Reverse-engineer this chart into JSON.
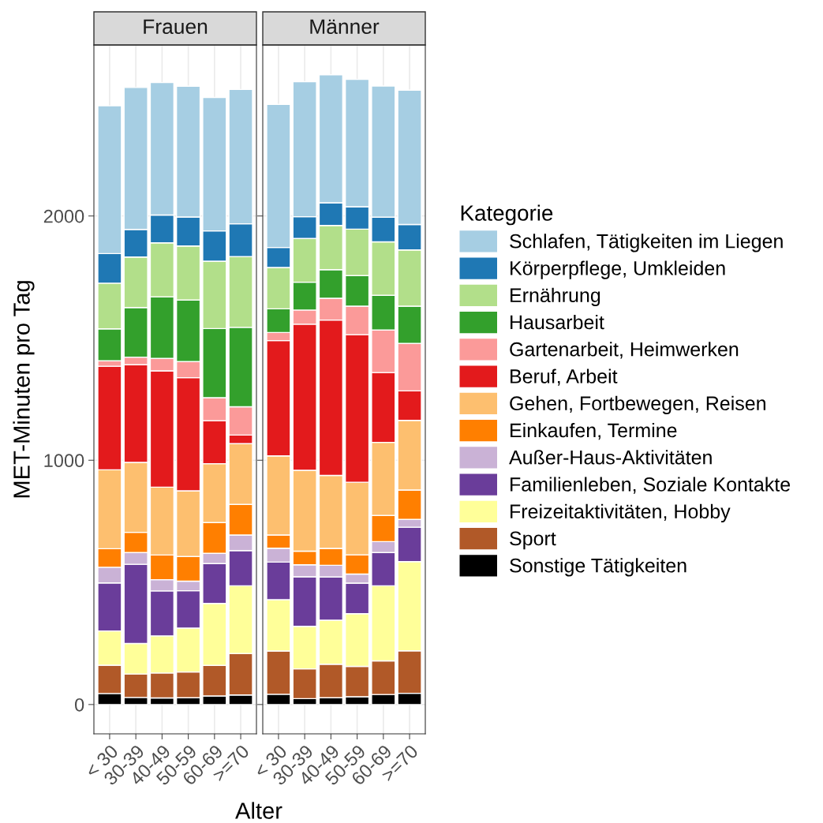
{
  "chart_data": [
    {
      "type": "bar",
      "stacked": true,
      "title": "Frauen",
      "ylabel": "MET-Minuten pro Tag",
      "xlabel": "Alter",
      "legend_title": "Kategorie",
      "legend": "right",
      "grid": true,
      "categories": [
        "< 30",
        "30-39",
        "40-49",
        "50-59",
        "60-69",
        ">=70"
      ],
      "ylim": [
        -120,
        2700
      ],
      "yticks": [
        0,
        1000,
        2000
      ],
      "series": [
        {
          "name": "Sonstige Tätigkeiten",
          "color": "#000000",
          "values": [
            45,
            29,
            27,
            28,
            35,
            39
          ]
        },
        {
          "name": "Sport",
          "color": "#b15928",
          "values": [
            116,
            96,
            102,
            105,
            125,
            170
          ]
        },
        {
          "name": "Freizeitaktivitäten, Hobby",
          "color": "#ffff99",
          "values": [
            140,
            125,
            152,
            180,
            254,
            277
          ]
        },
        {
          "name": "Familienleben, Soziale Kontakte",
          "color": "#6a3d9a",
          "values": [
            197,
            324,
            184,
            153,
            163,
            144
          ]
        },
        {
          "name": "Außer-Haus-Aktivitäten",
          "color": "#cab2d6",
          "values": [
            64,
            48,
            46,
            39,
            42,
            64
          ]
        },
        {
          "name": "Einkaufen, Termine",
          "color": "#ff7f00",
          "values": [
            76,
            83,
            101,
            101,
            126,
            125
          ]
        },
        {
          "name": "Gehen, Fortbewegen, Reisen",
          "color": "#fdbf6f",
          "values": [
            323,
            286,
            278,
            269,
            241,
            249
          ]
        },
        {
          "name": "Beruf, Arbeit",
          "color": "#e31a1c",
          "values": [
            424,
            400,
            476,
            463,
            176,
            35
          ]
        },
        {
          "name": "Gartenarbeit, Heimwerken",
          "color": "#fb9a99",
          "values": [
            22,
            31,
            51,
            66,
            94,
            116
          ]
        },
        {
          "name": "Hausarbeit",
          "color": "#33a02c",
          "values": [
            131,
            203,
            252,
            252,
            283,
            325
          ]
        },
        {
          "name": "Ernährung",
          "color": "#b2df8a",
          "values": [
            187,
            207,
            221,
            221,
            276,
            290
          ]
        },
        {
          "name": "Körperpflege, Umkleiden",
          "color": "#1f78b4",
          "values": [
            121,
            113,
            114,
            119,
            124,
            134
          ]
        },
        {
          "name": "Schlafen, Tätigkeiten im Liegen",
          "color": "#a6cee3",
          "values": [
            605,
            581,
            542,
            535,
            546,
            550
          ]
        }
      ]
    },
    {
      "type": "bar",
      "stacked": true,
      "title": "Männer",
      "grid": true,
      "tick_labels": "x",
      "categories": [
        "< 30",
        "30-39",
        "40-49",
        "50-59",
        "60-69",
        ">=70"
      ],
      "ylim": [
        -120,
        2700
      ],
      "yticks": [
        0,
        1000,
        2000
      ],
      "series": [
        {
          "color": "#000000",
          "values": [
            42,
            24,
            28,
            32,
            41,
            46
          ]
        },
        {
          "color": "#b15928",
          "values": [
            177,
            122,
            137,
            124,
            138,
            174
          ]
        },
        {
          "color": "#ffff99",
          "values": [
            210,
            174,
            180,
            216,
            307,
            365
          ]
        },
        {
          "color": "#6a3d9a",
          "values": [
            154,
            203,
            177,
            125,
            136,
            141
          ]
        },
        {
          "color": "#cab2d6",
          "values": [
            57,
            49,
            48,
            37,
            45,
            32
          ]
        },
        {
          "color": "#ff7f00",
          "values": [
            54,
            56,
            69,
            79,
            107,
            120
          ]
        },
        {
          "color": "#fdbf6f",
          "values": [
            324,
            331,
            299,
            297,
            299,
            285
          ]
        },
        {
          "color": "#e31a1c",
          "values": [
            472,
            598,
            636,
            604,
            286,
            121
          ]
        },
        {
          "color": "#fb9a99",
          "values": [
            33,
            58,
            89,
            117,
            174,
            194
          ]
        },
        {
          "color": "#33a02c",
          "values": [
            97,
            114,
            117,
            125,
            142,
            153
          ]
        },
        {
          "color": "#b2df8a",
          "values": [
            169,
            179,
            181,
            190,
            219,
            230
          ]
        },
        {
          "color": "#1f78b4",
          "values": [
            82,
            89,
            93,
            92,
            101,
            104
          ]
        },
        {
          "color": "#a6cee3",
          "values": [
            586,
            553,
            524,
            521,
            537,
            550
          ]
        }
      ]
    }
  ]
}
